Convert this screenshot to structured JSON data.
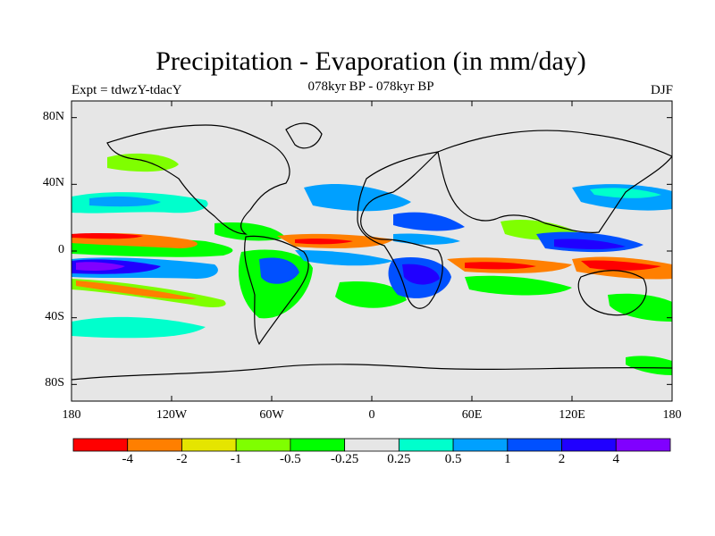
{
  "map": {
    "title": "Precipitation - Evaporation (in mm/day)",
    "subtitle": "078kyr BP - 078kyr BP",
    "left_label": "Expt = tdwzY-tdacY",
    "right_label": "DJF",
    "y_ticks": [
      "80N",
      "40N",
      "0",
      "40S",
      "80S"
    ],
    "y_tick_lats": [
      80,
      40,
      0,
      -40,
      -80
    ],
    "x_ticks": [
      "180",
      "120W",
      "60W",
      "0",
      "60E",
      "120E",
      "180"
    ],
    "x_tick_lons": [
      -180,
      -120,
      -60,
      0,
      60,
      120,
      180
    ],
    "lon_range": [
      -180,
      180
    ],
    "lat_range": [
      -90,
      90
    ],
    "background_color": "#e6e6e6"
  },
  "colorbar": {
    "labels": [
      "-4",
      "-2",
      "-1",
      "-0.5",
      "-0.25",
      "0.25",
      "0.5",
      "1",
      "2",
      "4"
    ],
    "colors": [
      "#ff0000",
      "#ff7f00",
      "#e5e500",
      "#7fff00",
      "#00ff00",
      "#e6e6e6",
      "#00ffcc",
      "#00a0ff",
      "#0050ff",
      "#2000ff",
      "#8000ff"
    ]
  }
}
